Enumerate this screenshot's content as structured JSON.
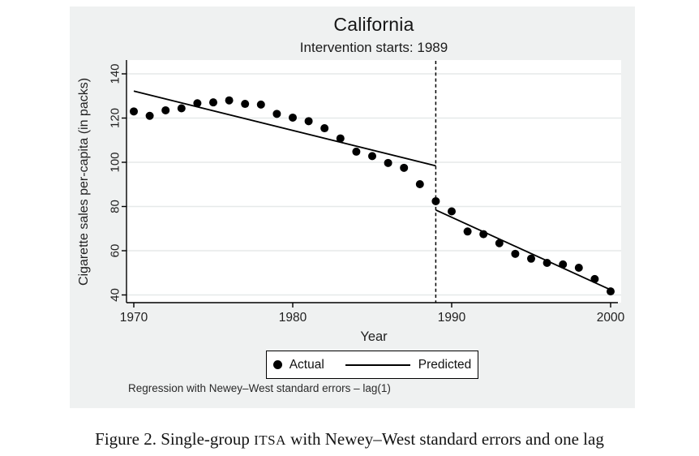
{
  "colors": {
    "figure_background": "#eff1f1",
    "plot_background": "#ffffff",
    "gridline": "#e6e9e9",
    "ink": "#000000"
  },
  "figure_caption": {
    "prefix": "Figure 2. Single-group ",
    "smallcaps": "ITSA",
    "suffix": " with Newey–West standard errors and one lag"
  },
  "chart_data": {
    "type": "scatter",
    "title": "California",
    "subtitle": "Intervention starts: 1989",
    "xlabel": "Year",
    "ylabel": "Cigarette sales per-capita (in packs)",
    "xlim": [
      1969.5,
      2000.7
    ],
    "ylim": [
      36,
      146
    ],
    "xticks": [
      1970,
      1980,
      1990,
      2000
    ],
    "yticks": [
      40,
      60,
      80,
      100,
      120,
      140
    ],
    "grid": "horizontal-only",
    "legend": {
      "position": "bottom-center",
      "entries": [
        {
          "marker": "dot",
          "label": "Actual"
        },
        {
          "marker": "line",
          "label": "Predicted"
        }
      ]
    },
    "intervention": {
      "x": 1989,
      "style": "dashed-vertical-line"
    },
    "note": "Regression with Newey–West standard errors – lag(1)",
    "series": [
      {
        "name": "Actual",
        "style": "points",
        "x": [
          1970,
          1971,
          1972,
          1973,
          1974,
          1975,
          1976,
          1977,
          1978,
          1979,
          1980,
          1981,
          1982,
          1983,
          1984,
          1985,
          1986,
          1987,
          1988,
          1989,
          1990,
          1991,
          1992,
          1993,
          1994,
          1995,
          1996,
          1997,
          1998,
          1999,
          2000
        ],
        "y": [
          123.0,
          121.0,
          123.5,
          124.4,
          126.7,
          127.1,
          128.0,
          126.4,
          126.1,
          121.9,
          120.2,
          118.6,
          115.4,
          110.8,
          104.8,
          102.8,
          99.7,
          97.5,
          90.1,
          82.4,
          77.8,
          68.7,
          67.5,
          63.4,
          58.6,
          56.4,
          54.5,
          53.8,
          52.3,
          47.2,
          41.6
        ]
      },
      {
        "name": "Predicted (pre-intervention)",
        "style": "line",
        "x": [
          1970,
          1989
        ],
        "y": [
          132.2,
          98.4
        ]
      },
      {
        "name": "Predicted (post-intervention)",
        "style": "line",
        "x": [
          1989,
          2000
        ],
        "y": [
          78.4,
          42.3
        ]
      }
    ]
  }
}
